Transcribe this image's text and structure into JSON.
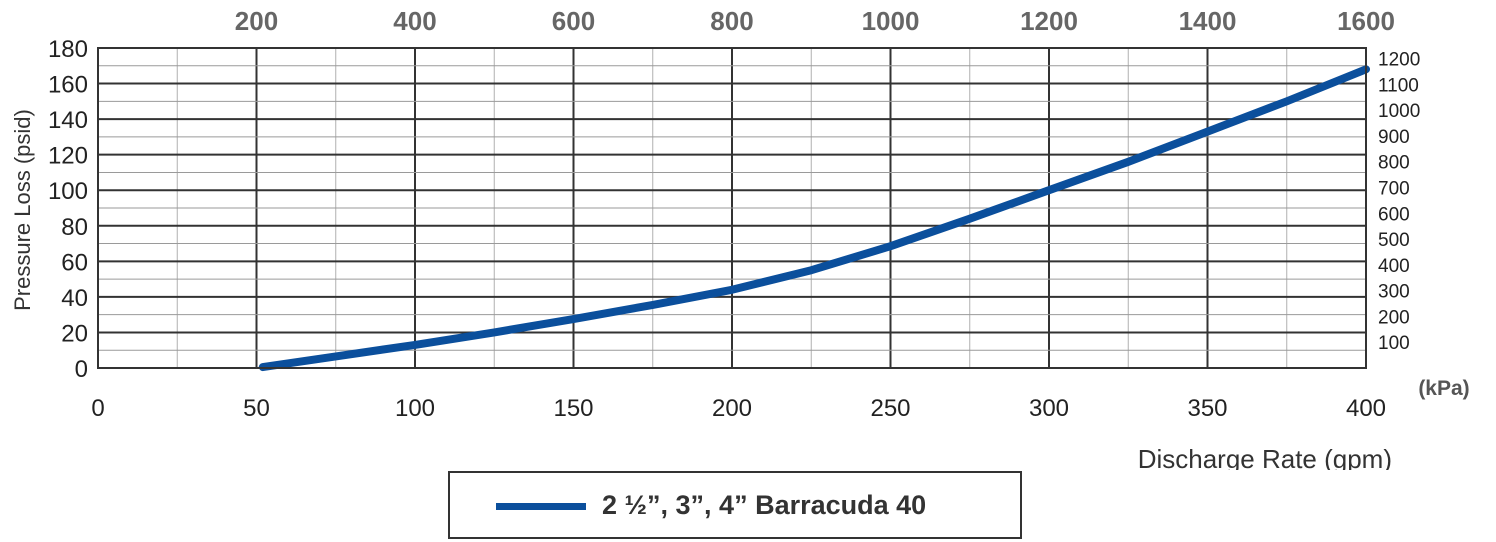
{
  "chart_data": {
    "type": "line",
    "xlabel": "Discharge Rate (gpm)",
    "ylabel": "Pressure Loss  (psid)",
    "right_axis_unit": "(kPa)",
    "xlim": [
      0,
      400
    ],
    "ylim": [
      0,
      180
    ],
    "grid": true,
    "legend_placement": "bottom",
    "x_ticks": [
      "0",
      "50",
      "100",
      "150",
      "200",
      "250",
      "300",
      "350",
      "400"
    ],
    "y_ticks": [
      "0",
      "20",
      "40",
      "60",
      "80",
      "100",
      "120",
      "140",
      "160",
      "180"
    ],
    "top_ticks": [
      "200",
      "400",
      "600",
      "800",
      "1000",
      "1200",
      "1400",
      "1600"
    ],
    "right_ticks": [
      "100",
      "200",
      "300",
      "400",
      "500",
      "600",
      "700",
      "800",
      "900",
      "1000",
      "1100",
      "1200"
    ],
    "series": [
      {
        "name": "2 ½”, 3”, 4” Barracuda 40",
        "color": "#0b4f9c",
        "x": [
          52,
          75,
          100,
          125,
          150,
          175,
          200,
          225,
          250,
          275,
          300,
          325,
          350,
          375,
          400
        ],
        "y": [
          0.5,
          6.5,
          13,
          20,
          27.5,
          35.5,
          44,
          55,
          68.5,
          84,
          100,
          116,
          133,
          150,
          168
        ]
      }
    ]
  }
}
